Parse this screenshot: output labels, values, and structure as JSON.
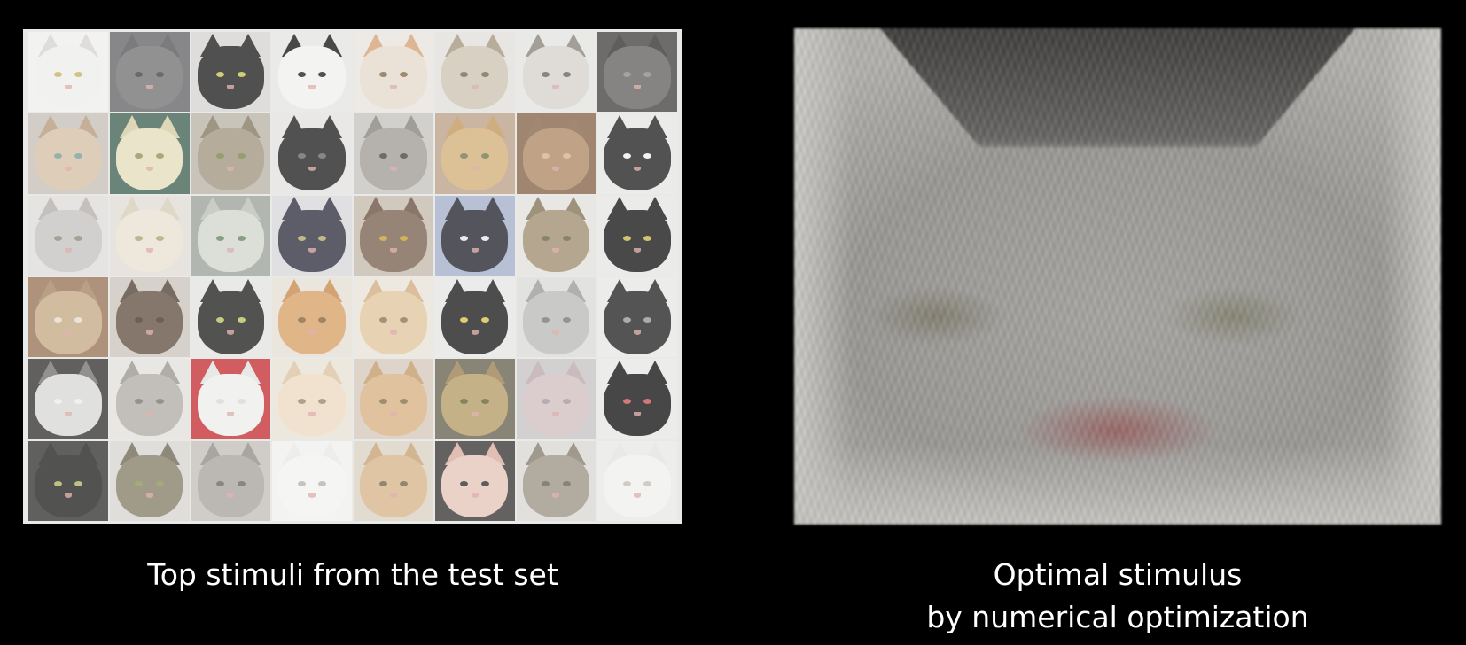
{
  "left_panel": {
    "caption": "Top stimuli from the test set",
    "tiles": [
      {
        "bg": "#f0efed",
        "fur": "#eeeeec",
        "ear": "#d8d6d3",
        "eye": "#c9b66a"
      },
      {
        "bg": "#6d6c6e",
        "fur": "#7a797b",
        "ear": "#5e5d60",
        "eye": "#4c4a48"
      },
      {
        "bg": "#d7d6d4",
        "fur": "#2a2a2b",
        "ear": "#2a2a2b",
        "eye": "#c8c35a"
      },
      {
        "bg": "#e6e6e4",
        "fur": "#f1f1ef",
        "ear": "#222222",
        "eye": "#2b2b2b"
      },
      {
        "bg": "#e9e5de",
        "fur": "#e7dccf",
        "ear": "#d7a67c",
        "eye": "#8b7050"
      },
      {
        "bg": "#e3e1dc",
        "fur": "#cfc6b6",
        "ear": "#a99b84",
        "eye": "#777053"
      },
      {
        "bg": "#e5e4e2",
        "fur": "#d8d4cd",
        "ear": "#8f8a82",
        "eye": "#6f6a60"
      },
      {
        "bg": "#4e4c4b",
        "fur": "#6b6968",
        "ear": "#3d3b3a",
        "eye": "#8f8e8a"
      },
      {
        "bg": "#c9c3bb",
        "fur": "#d7c2a9",
        "ear": "#b99e80",
        "eye": "#7ea198"
      },
      {
        "bg": "#4b6a5c",
        "fur": "#e5dfbf",
        "ear": "#d6cfa8",
        "eye": "#9a935d"
      },
      {
        "bg": "#bdb7ab",
        "fur": "#a59a85",
        "ear": "#8a7e68",
        "eye": "#7c8a4e"
      },
      {
        "bg": "#e4e3e1",
        "fur": "#2c2b2c",
        "ear": "#2c2b2c",
        "eye": "#6e6c6a"
      },
      {
        "bg": "#c8c6c2",
        "fur": "#a5a09a",
        "ear": "#8d8882",
        "eye": "#4f4c49"
      },
      {
        "bg": "#bda58e",
        "fur": "#d5b47f",
        "ear": "#c59b62",
        "eye": "#7a7c55"
      },
      {
        "bg": "#8b6c52",
        "fur": "#b38e6c",
        "ear": "#8d6e55",
        "eye": "#d3b78d"
      },
      {
        "bg": "#e7e7e5",
        "fur": "#2d2c2c",
        "ear": "#2d2c2c",
        "eye": "#efefef"
      },
      {
        "bg": "#e1dfdc",
        "fur": "#c9c6c4",
        "ear": "#b6b2b0",
        "eye": "#8e8f80"
      },
      {
        "bg": "#e2dfd8",
        "fur": "#e9e3d3",
        "ear": "#d9d0bb",
        "eye": "#b0a57a"
      },
      {
        "bg": "#a0a69f",
        "fur": "#d3d8cf",
        "ear": "#bfc3ba",
        "eye": "#6f8a6a"
      },
      {
        "bg": "#d9d9dc",
        "fur": "#3a3a4a",
        "ear": "#3a3a4a",
        "eye": "#b3ab6d"
      },
      {
        "bg": "#c9beb0",
        "fur": "#7f6a58",
        "ear": "#6e5a4a",
        "eye": "#c7a13a"
      },
      {
        "bg": "#a9b2cc",
        "fur": "#2f2f3a",
        "ear": "#2f2f3a",
        "eye": "#e7e7ec"
      },
      {
        "bg": "#e4e2de",
        "fur": "#a49377",
        "ear": "#8a7a60",
        "eye": "#6e6a4a"
      },
      {
        "bg": "#e7e7e6",
        "fur": "#222222",
        "ear": "#222222",
        "eye": "#c8b84d"
      },
      {
        "bg": "#9e7b5e",
        "fur": "#c8ae8c",
        "ear": "#a98a6b",
        "eye": "#e7ddd0"
      },
      {
        "bg": "#cdc7c0",
        "fur": "#6b5a4c",
        "ear": "#5b4b3f",
        "eye": "#4b3e34"
      },
      {
        "bg": "#e5e5e3",
        "fur": "#2c2c2b",
        "ear": "#2c2c2b",
        "eye": "#bfbf6a"
      },
      {
        "bg": "#e7e1d6",
        "fur": "#d9a66f",
        "ear": "#c98f57",
        "eye": "#8d6a3f"
      },
      {
        "bg": "#e9e4da",
        "fur": "#e3c9a4",
        "ear": "#d4b087",
        "eye": "#8f7a5d"
      },
      {
        "bg": "#e7e7e6",
        "fur": "#262626",
        "ear": "#262626",
        "eye": "#d9c354"
      },
      {
        "bg": "#dcdcdb",
        "fur": "#bdbdbb",
        "ear": "#9f9f9d",
        "eye": "#7d7d7a"
      },
      {
        "bg": "#e8e8e7",
        "fur": "#2f2f30",
        "ear": "#2f2f30",
        "eye": "#9a9a96"
      },
      {
        "bg": "#3f3d3c",
        "fur": "#d9d9d7",
        "ear": "#7b7977",
        "eye": "#eeeeee"
      },
      {
        "bg": "#e3e2df",
        "fur": "#b5b1ab",
        "ear": "#9f9a93",
        "eye": "#7e7a70"
      },
      {
        "bg": "#c73a3f",
        "fur": "#eeeeec",
        "ear": "#e3e3e1",
        "eye": "#d9d9d7"
      },
      {
        "bg": "#e9e3d6",
        "fur": "#eddcc5",
        "ear": "#dcc5a5",
        "eye": "#9a8e74"
      },
      {
        "bg": "#d7cbbd",
        "fur": "#d9b58a",
        "ear": "#c69f72",
        "eye": "#8a7451"
      },
      {
        "bg": "#6e6b58",
        "fur": "#b9a06e",
        "ear": "#a08658",
        "eye": "#6c6a3c"
      },
      {
        "bg": "#c9c6c6",
        "fur": "#d3c3c4",
        "ear": "#bfaeb0",
        "eye": "#a89ca0"
      },
      {
        "bg": "#e8e8e7",
        "fur": "#1f1f1f",
        "ear": "#1f1f1f",
        "eye": "#c95c5a"
      },
      {
        "bg": "#3e3d3c",
        "fur": "#2d2c2b",
        "ear": "#2d2c2b",
        "eye": "#b3b36a"
      },
      {
        "bg": "#dad7d2",
        "fur": "#8b8470",
        "ear": "#76705e",
        "eye": "#8f9a5a"
      },
      {
        "bg": "#c6c3be",
        "fur": "#aca9a4",
        "ear": "#96928c",
        "eye": "#6f6b63"
      },
      {
        "bg": "#f1f1f0",
        "fur": "#f3f3f2",
        "ear": "#e9e9e8",
        "eye": "#b8b6b0"
      },
      {
        "bg": "#dcd4c6",
        "fur": "#d8b98f",
        "ear": "#c9a57b",
        "eye": "#7c6c4d"
      },
      {
        "bg": "#41403d",
        "fur": "#e7c8be",
        "ear": "#d9b0a3",
        "eye": "#3a3a3a"
      },
      {
        "bg": "#dcdad6",
        "fur": "#a09a8a",
        "ear": "#8a8474",
        "eye": "#6d6a58"
      },
      {
        "bg": "#e9e9e8",
        "fur": "#f1f1f0",
        "ear": "#e4e4e2",
        "eye": "#c5c1bc"
      }
    ]
  },
  "right_panel": {
    "caption_line1": "Optimal stimulus",
    "caption_line2": "by numerical optimization"
  }
}
